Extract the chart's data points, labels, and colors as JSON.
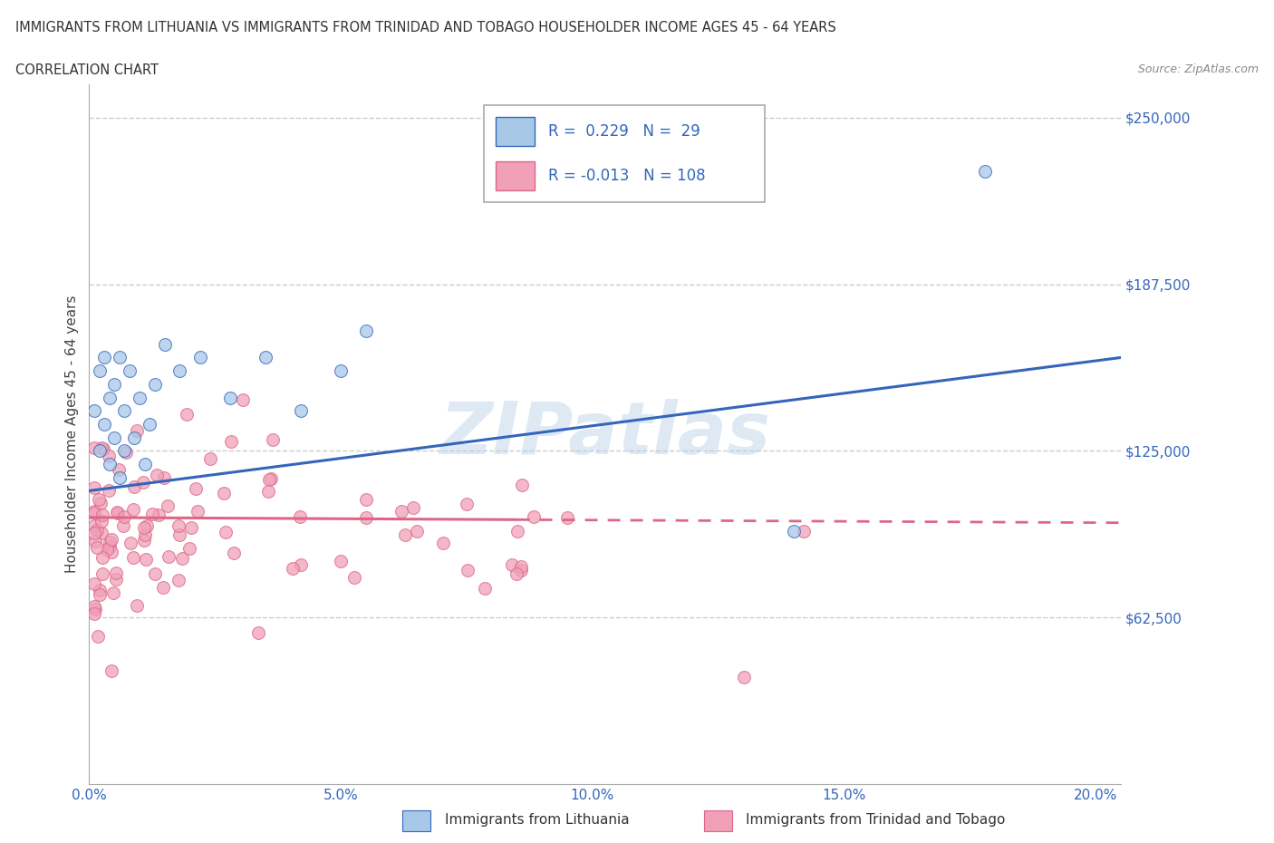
{
  "title_line1": "IMMIGRANTS FROM LITHUANIA VS IMMIGRANTS FROM TRINIDAD AND TOBAGO HOUSEHOLDER INCOME AGES 45 - 64 YEARS",
  "title_line2": "CORRELATION CHART",
  "source_text": "Source: ZipAtlas.com",
  "ylabel": "Householder Income Ages 45 - 64 years",
  "xlim": [
    0.0,
    0.205
  ],
  "ylim": [
    0,
    262500
  ],
  "yticks": [
    0,
    62500,
    125000,
    187500,
    250000
  ],
  "ytick_labels": [
    "",
    "$62,500",
    "$125,000",
    "$187,500",
    "$250,000"
  ],
  "xticks": [
    0.0,
    0.05,
    0.1,
    0.15,
    0.2
  ],
  "xtick_labels": [
    "0.0%",
    "5.0%",
    "10.0%",
    "15.0%",
    "20.0%"
  ],
  "watermark": "ZIPatlas",
  "legend_R1": "0.229",
  "legend_N1": "29",
  "legend_R2": "-0.013",
  "legend_N2": "108",
  "color_lithuania": "#a8c8e8",
  "color_tt": "#f0a0b8",
  "color_trend_lithuania": "#3366bb",
  "color_trend_tt": "#dd6688",
  "scatter_alpha": 0.75,
  "scatter_size": 100,
  "trend_lith_y0": 110000,
  "trend_lith_y1": 160000,
  "trend_tt_y0": 100000,
  "trend_tt_y1": 98000,
  "trend_tt_solid_x1": 0.085
}
